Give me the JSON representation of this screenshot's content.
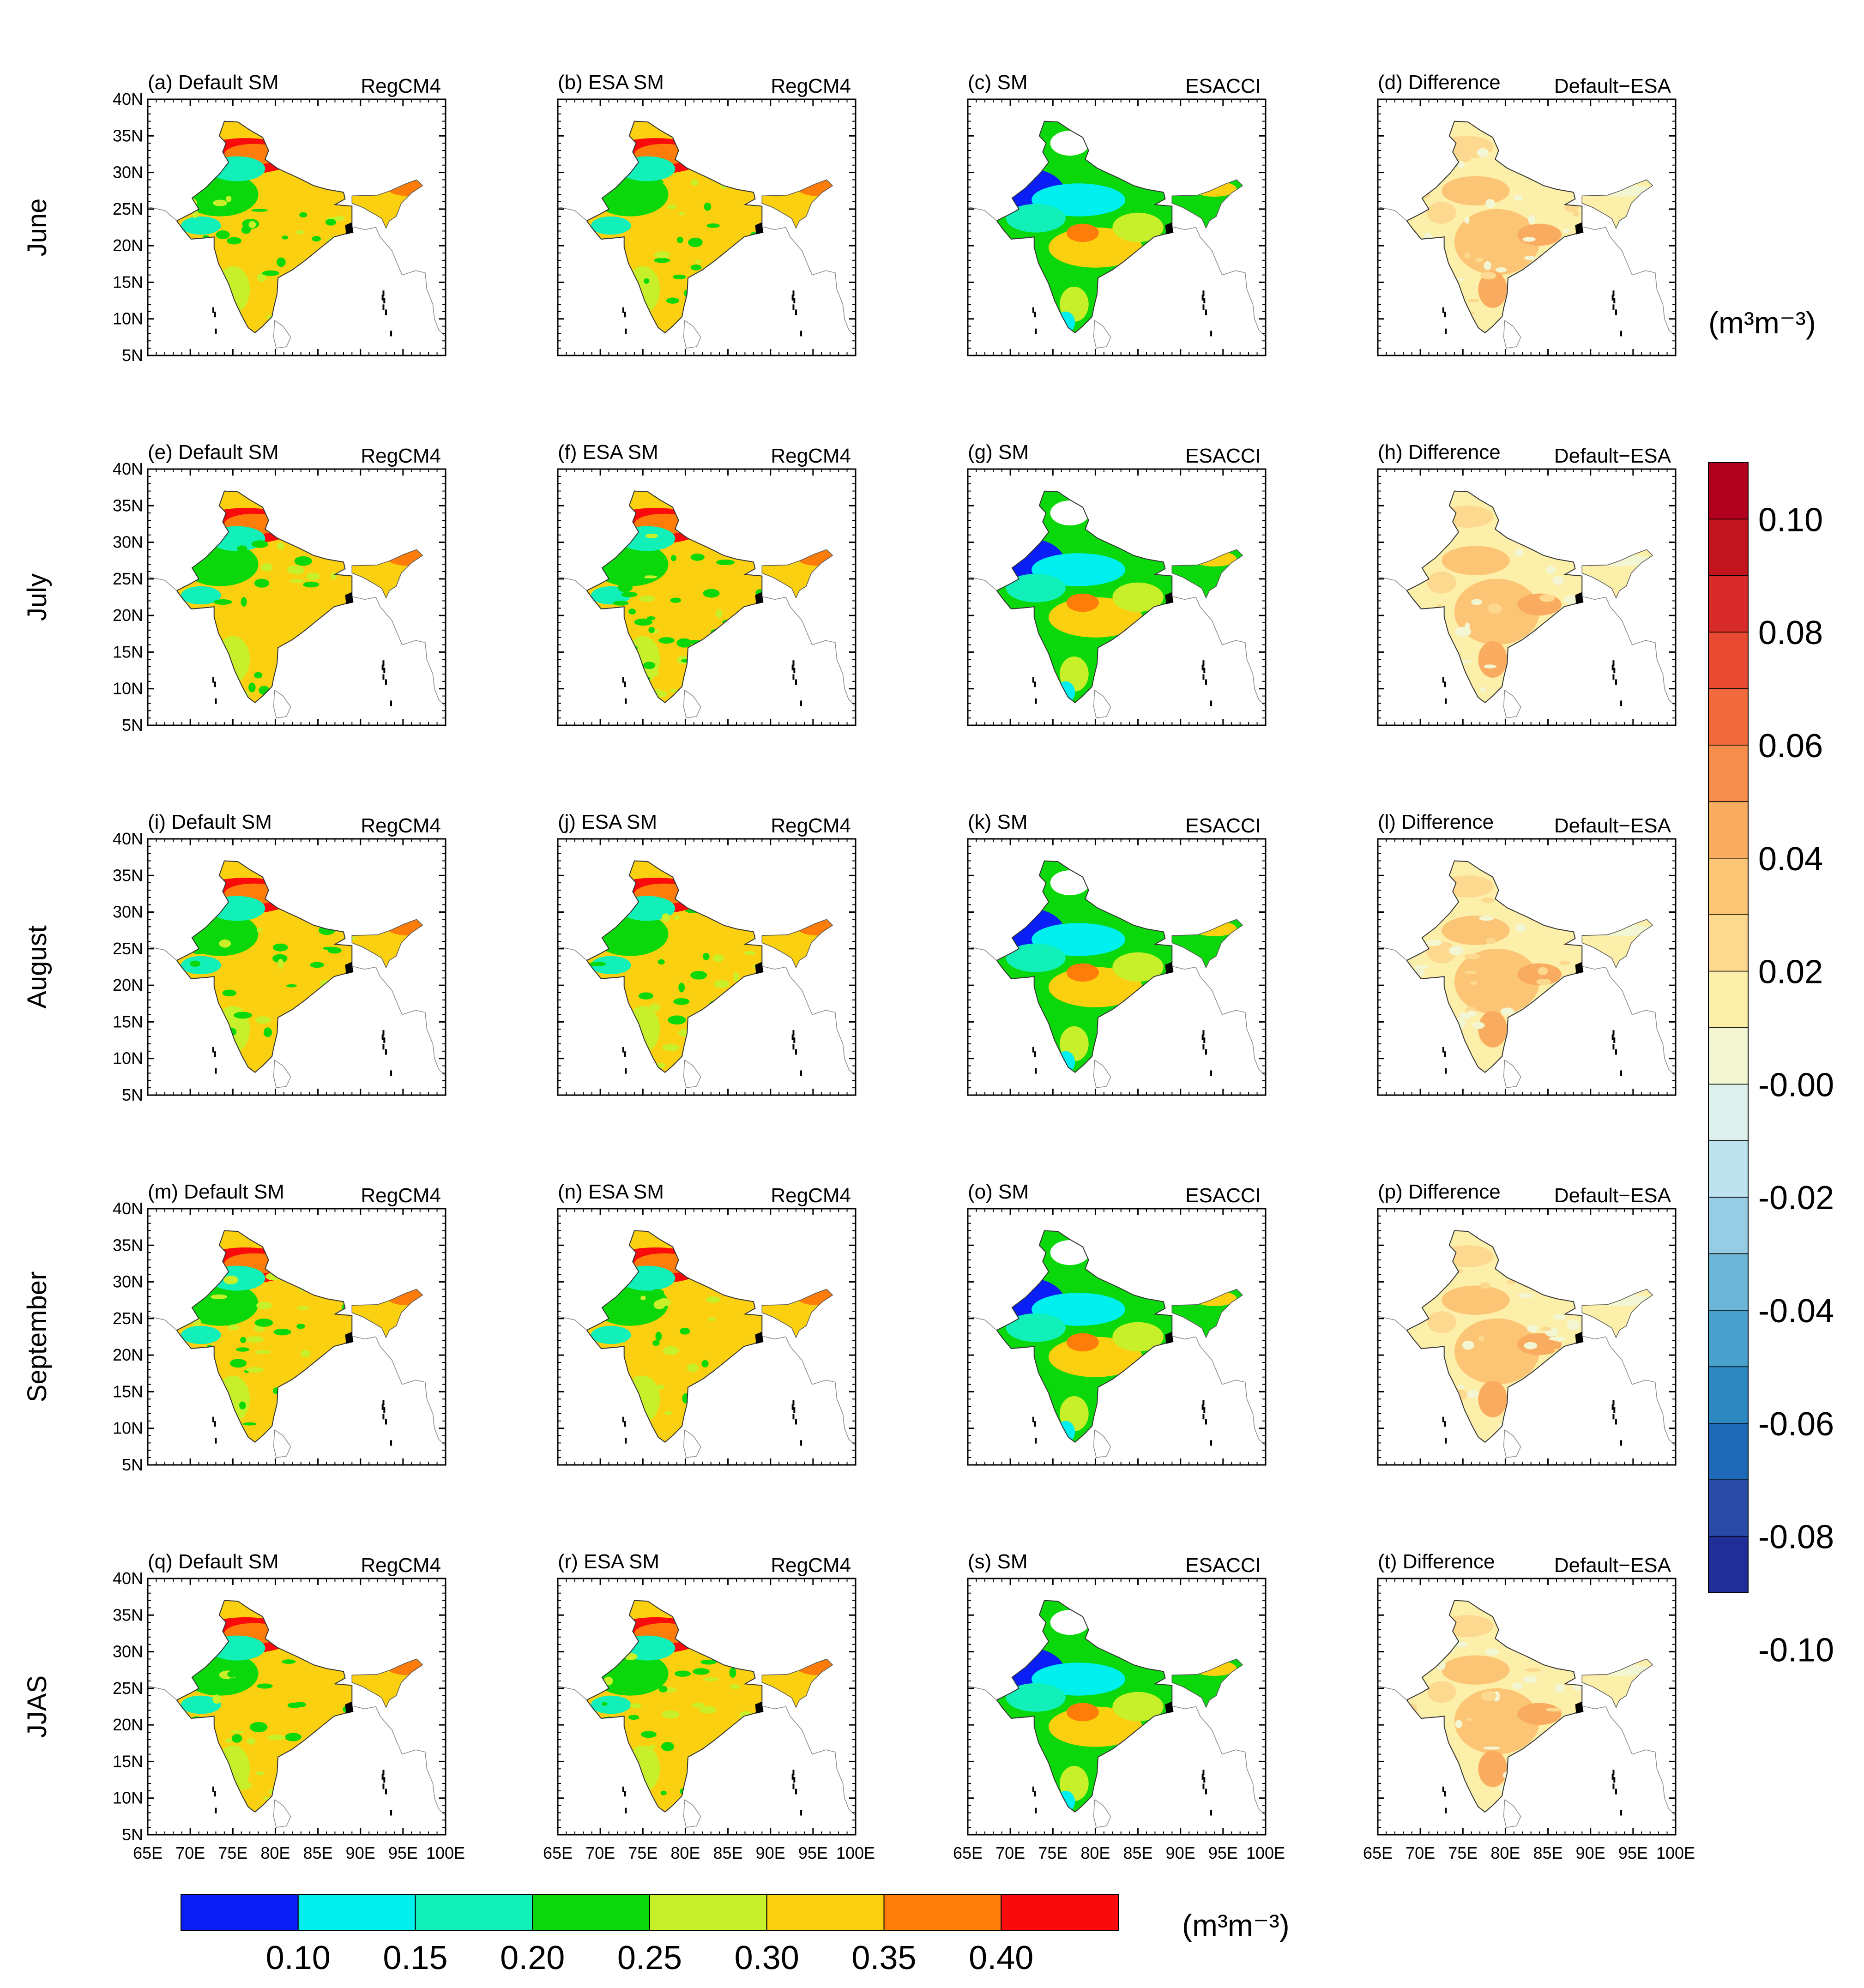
{
  "chart_data": {
    "type": "map-panels",
    "rows": [
      "June",
      "July",
      "August",
      "September",
      "JJAS"
    ],
    "panels": [
      {
        "label": "(a) Default SM",
        "source": "RegCM4",
        "kind": "sm",
        "row": 0,
        "col": 0
      },
      {
        "label": "(b) ESA SM",
        "source": "RegCM4",
        "kind": "sm",
        "row": 0,
        "col": 1
      },
      {
        "label": "(c) SM",
        "source": "ESACCI",
        "kind": "obs",
        "row": 0,
        "col": 2
      },
      {
        "label": "(d) Difference",
        "source": "Default−ESA",
        "kind": "diff",
        "row": 0,
        "col": 3
      },
      {
        "label": "(e) Default SM",
        "source": "RegCM4",
        "kind": "sm",
        "row": 1,
        "col": 0
      },
      {
        "label": "(f) ESA SM",
        "source": "RegCM4",
        "kind": "sm",
        "row": 1,
        "col": 1
      },
      {
        "label": "(g) SM",
        "source": "ESACCI",
        "kind": "obs",
        "row": 1,
        "col": 2
      },
      {
        "label": "(h) Difference",
        "source": "Default−ESA",
        "kind": "diff",
        "row": 1,
        "col": 3
      },
      {
        "label": "(i) Default SM",
        "source": "RegCM4",
        "kind": "sm",
        "row": 2,
        "col": 0
      },
      {
        "label": "(j) ESA SM",
        "source": "RegCM4",
        "kind": "sm",
        "row": 2,
        "col": 1
      },
      {
        "label": "(k) SM",
        "source": "ESACCI",
        "kind": "obs",
        "row": 2,
        "col": 2
      },
      {
        "label": "(l) Difference",
        "source": "Default−ESA",
        "kind": "diff",
        "row": 2,
        "col": 3
      },
      {
        "label": "(m) Default SM",
        "source": "RegCM4",
        "kind": "sm",
        "row": 3,
        "col": 0
      },
      {
        "label": "(n) ESA SM",
        "source": "RegCM4",
        "kind": "sm",
        "row": 3,
        "col": 1
      },
      {
        "label": "(o) SM",
        "source": "ESACCI",
        "kind": "obs",
        "row": 3,
        "col": 2
      },
      {
        "label": "(p) Difference",
        "source": "Default−ESA",
        "kind": "diff",
        "row": 3,
        "col": 3
      },
      {
        "label": "(q) Default SM",
        "source": "RegCM4",
        "kind": "sm",
        "row": 4,
        "col": 0
      },
      {
        "label": "(r) ESA SM",
        "source": "RegCM4",
        "kind": "sm",
        "row": 4,
        "col": 1
      },
      {
        "label": "(s) SM",
        "source": "ESACCI",
        "kind": "obs",
        "row": 4,
        "col": 2
      },
      {
        "label": "(t) Difference",
        "source": "Default−ESA",
        "kind": "diff",
        "row": 4,
        "col": 3
      }
    ],
    "lat_ticks": [
      "40N",
      "35N",
      "30N",
      "25N",
      "20N",
      "15N",
      "10N",
      "5N"
    ],
    "lat_values": [
      40,
      35,
      30,
      25,
      20,
      15,
      10,
      5
    ],
    "lon_ticks": [
      "65E",
      "70E",
      "75E",
      "80E",
      "85E",
      "90E",
      "95E",
      "100E"
    ],
    "lon_values": [
      65,
      70,
      75,
      80,
      85,
      90,
      95,
      100
    ],
    "lat_range": [
      5,
      40
    ],
    "lon_range": [
      65,
      100
    ],
    "sm_colorbar": {
      "colors": [
        "#0a1ff5",
        "#00f0f0",
        "#10f0b8",
        "#0ad80a",
        "#c8f02a",
        "#fad010",
        "#fd7c0a",
        "#fa0a0a"
      ],
      "tick_labels": [
        "0.10",
        "0.15",
        "0.20",
        "0.25",
        "0.30",
        "0.35",
        "0.40"
      ],
      "unit": "(m³m⁻³)"
    },
    "diff_colorbar": {
      "colors": [
        "#1f2f97",
        "#2a4aa8",
        "#1f6ab8",
        "#2d88c2",
        "#48a2cd",
        "#6cb7d8",
        "#96cde4",
        "#bde3ef",
        "#dcf0ec",
        "#f2f6d2",
        "#fcefaa",
        "#fcd98e",
        "#fbc575",
        "#f9ac5f",
        "#f78d4c",
        "#f26a3c",
        "#e84b31",
        "#d92a2a",
        "#c2141f",
        "#b0001e"
      ],
      "tick_labels": [
        "0.10",
        "0.08",
        "0.06",
        "0.04",
        "0.02",
        "-0.00",
        "-0.02",
        "-0.04",
        "-0.06",
        "-0.08",
        "-0.10"
      ],
      "unit": "(m³m⁻³)"
    }
  }
}
